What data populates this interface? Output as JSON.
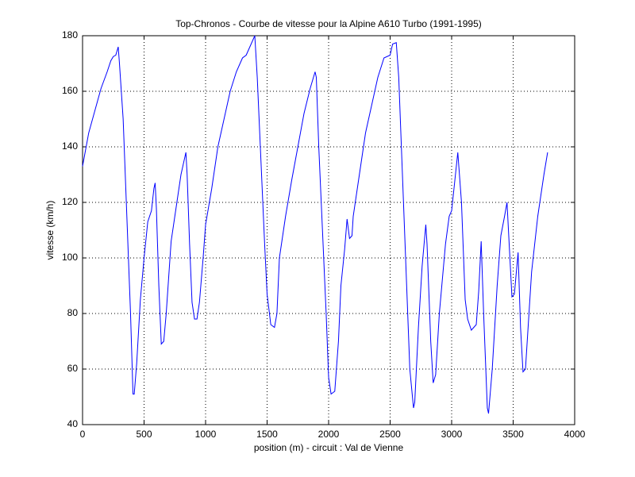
{
  "chart_data": {
    "type": "line",
    "title": "Top-Chronos - Courbe de vitesse pour la Alpine A610 Turbo (1991-1995)",
    "x_label": "position (m) - circuit : Val de Vienne",
    "y_label": "vitesse (km/h)",
    "x": [
      0,
      50,
      100,
      150,
      200,
      230,
      250,
      270,
      290,
      300,
      330,
      360,
      390,
      410,
      420,
      440,
      470,
      500,
      530,
      560,
      580,
      590,
      600,
      620,
      640,
      660,
      680,
      720,
      760,
      800,
      830,
      840,
      850,
      870,
      890,
      910,
      930,
      950,
      980,
      1000,
      1050,
      1100,
      1150,
      1200,
      1250,
      1300,
      1330,
      1370,
      1400,
      1420,
      1450,
      1480,
      1500,
      1530,
      1560,
      1580,
      1600,
      1650,
      1700,
      1750,
      1800,
      1850,
      1890,
      1900,
      1920,
      1950,
      1980,
      2000,
      2020,
      2050,
      2080,
      2100,
      2130,
      2150,
      2170,
      2190,
      2200,
      2250,
      2300,
      2350,
      2400,
      2450,
      2500,
      2520,
      2550,
      2570,
      2600,
      2630,
      2660,
      2690,
      2700,
      2730,
      2760,
      2790,
      2800,
      2830,
      2850,
      2870,
      2900,
      2950,
      2980,
      3000,
      3050,
      3080,
      3110,
      3130,
      3160,
      3200,
      3220,
      3240,
      3260,
      3290,
      3300,
      3330,
      3370,
      3400,
      3430,
      3450,
      3470,
      3490,
      3510,
      3540,
      3560,
      3580,
      3600,
      3650,
      3700,
      3750,
      3780
    ],
    "values": [
      133,
      145,
      153,
      161,
      167,
      171,
      172.5,
      173,
      176,
      170,
      150,
      115,
      80,
      51,
      51,
      62,
      85,
      100,
      113,
      117,
      125,
      127,
      118,
      90,
      69,
      70,
      80,
      106,
      118,
      130,
      136,
      138,
      130,
      105,
      84,
      78,
      78,
      84,
      100,
      112,
      125,
      140,
      150,
      160,
      167,
      172,
      173,
      177,
      180,
      165,
      135,
      105,
      87,
      76,
      75,
      80,
      100,
      115,
      128,
      140,
      152,
      161,
      167,
      165,
      140,
      110,
      80,
      57,
      51,
      52,
      70,
      90,
      103,
      114,
      107,
      108,
      115,
      130,
      145,
      155,
      165,
      172,
      173,
      177,
      177.5,
      165,
      130,
      95,
      60,
      46,
      48,
      75,
      97,
      112,
      105,
      70,
      55,
      58,
      80,
      105,
      115,
      117,
      138,
      120,
      85,
      78,
      74,
      76,
      88,
      106,
      80,
      46,
      44,
      60,
      90,
      108,
      115,
      120,
      103,
      86,
      87,
      102,
      75,
      59,
      60,
      95,
      115,
      130,
      138
    ],
    "color": "#0000ff",
    "xlim": [
      0,
      4000
    ],
    "xticks": [
      0,
      500,
      1000,
      1500,
      2000,
      2500,
      3000,
      3500,
      4000
    ],
    "ylim": [
      40,
      180
    ],
    "yticks": [
      40,
      60,
      80,
      100,
      120,
      140,
      160,
      180
    ],
    "grid": true
  }
}
